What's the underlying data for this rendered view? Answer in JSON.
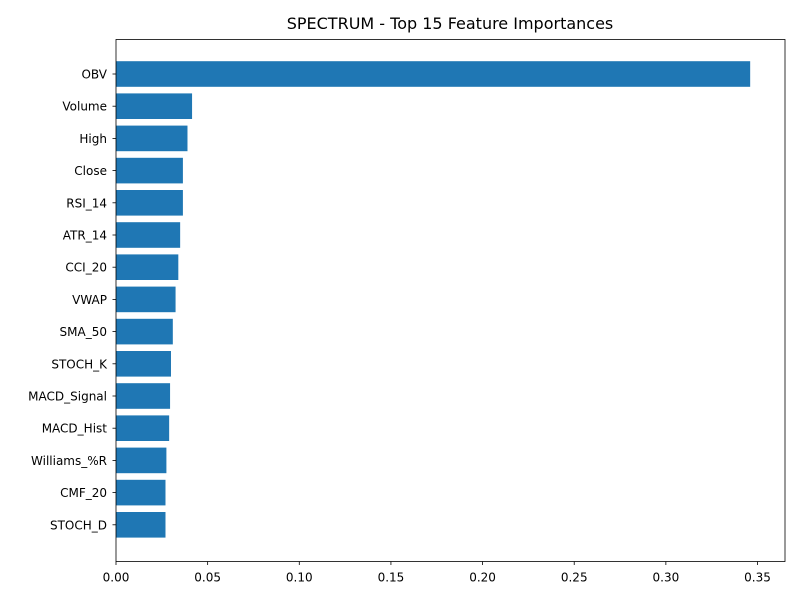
{
  "chart_data": {
    "type": "bar",
    "orientation": "horizontal",
    "title": "SPECTRUM - Top 15 Feature Importances",
    "xlabel": "",
    "ylabel": "",
    "categories": [
      "OBV",
      "Volume",
      "High",
      "Close",
      "RSI_14",
      "ATR_14",
      "CCI_20",
      "VWAP",
      "SMA_50",
      "STOCH_K",
      "MACD_Signal",
      "MACD_Hist",
      "Williams_%R",
      "CMF_20",
      "STOCH_D"
    ],
    "values": [
      0.346,
      0.0415,
      0.039,
      0.0365,
      0.0365,
      0.035,
      0.034,
      0.0325,
      0.031,
      0.03,
      0.0295,
      0.029,
      0.0275,
      0.027,
      0.027
    ],
    "xlim": [
      0,
      0.365
    ],
    "xticks": [
      "0.00",
      "0.05",
      "0.10",
      "0.15",
      "0.20",
      "0.25",
      "0.30",
      "0.35"
    ],
    "bar_color": "#1f77b4",
    "grid": false
  }
}
